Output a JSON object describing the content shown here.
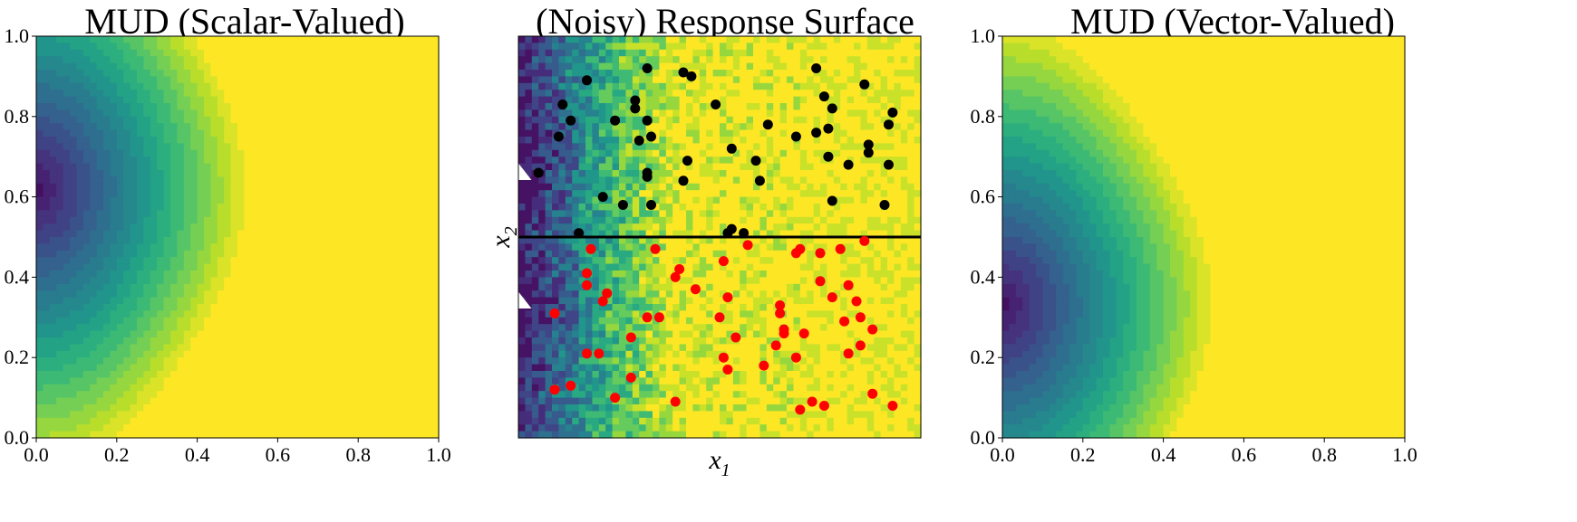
{
  "colors": {
    "viridis_stops": [
      "#440154",
      "#482878",
      "#3e4989",
      "#31688e",
      "#26828e",
      "#1f9e89",
      "#35b779",
      "#6ece58",
      "#b5de2b",
      "#fde725"
    ],
    "upper_points": "#000000",
    "lower_points": "#ff0000",
    "divider_line": "#000000",
    "marker": "#ffffff"
  },
  "chart_data": [
    {
      "type": "heatmap",
      "title": "MUD (Scalar-Valued)",
      "xlim": [
        0.0,
        1.0
      ],
      "ylim": [
        0.0,
        1.0
      ],
      "xticks": [
        "0.0",
        "0.2",
        "0.4",
        "0.6",
        "0.8",
        "1.0"
      ],
      "yticks": [
        "0.0",
        "0.2",
        "0.4",
        "0.6",
        "0.8",
        "1.0"
      ],
      "xlabel": "",
      "ylabel": "",
      "density_peak": {
        "x": 0.0,
        "y": 0.62
      },
      "colormap": "viridis",
      "filled_contours": true
    },
    {
      "type": "scatter",
      "title": "(Noisy) Response Surface",
      "xlabel": "x",
      "xlabel_sub": "1",
      "ylabel": "x",
      "ylabel_sub": "2",
      "xlim": [
        0.0,
        1.0
      ],
      "ylim": [
        0.0,
        1.0
      ],
      "xticks": [],
      "yticks": [],
      "background": "noisy filled contours (viridis), low values near x = 0",
      "divider_y": 0.5,
      "markers": [
        {
          "x": 0.01,
          "y": 0.66
        },
        {
          "x": 0.01,
          "y": 0.34
        }
      ],
      "series": [
        {
          "color": "upper_points",
          "points": [
            [
              0.17,
              0.89
            ],
            [
              0.32,
              0.92
            ],
            [
              0.41,
              0.91
            ],
            [
              0.43,
              0.9
            ],
            [
              0.74,
              0.92
            ],
            [
              0.86,
              0.88
            ],
            [
              0.11,
              0.83
            ],
            [
              0.29,
              0.84
            ],
            [
              0.29,
              0.82
            ],
            [
              0.49,
              0.83
            ],
            [
              0.76,
              0.85
            ],
            [
              0.78,
              0.82
            ],
            [
              0.93,
              0.81
            ],
            [
              0.13,
              0.79
            ],
            [
              0.24,
              0.79
            ],
            [
              0.32,
              0.79
            ],
            [
              0.62,
              0.78
            ],
            [
              0.92,
              0.78
            ],
            [
              0.77,
              0.77
            ],
            [
              0.1,
              0.75
            ],
            [
              0.3,
              0.74
            ],
            [
              0.33,
              0.75
            ],
            [
              0.69,
              0.75
            ],
            [
              0.74,
              0.76
            ],
            [
              0.87,
              0.73
            ],
            [
              0.53,
              0.72
            ],
            [
              0.87,
              0.71
            ],
            [
              0.77,
              0.7
            ],
            [
              0.42,
              0.69
            ],
            [
              0.59,
              0.69
            ],
            [
              0.82,
              0.68
            ],
            [
              0.92,
              0.68
            ],
            [
              0.05,
              0.66
            ],
            [
              0.32,
              0.66
            ],
            [
              0.32,
              0.65
            ],
            [
              0.41,
              0.64
            ],
            [
              0.6,
              0.64
            ],
            [
              0.21,
              0.6
            ],
            [
              0.78,
              0.59
            ],
            [
              0.26,
              0.58
            ],
            [
              0.33,
              0.58
            ],
            [
              0.91,
              0.58
            ],
            [
              0.15,
              0.51
            ],
            [
              0.53,
              0.52
            ],
            [
              0.52,
              0.51
            ],
            [
              0.56,
              0.51
            ]
          ]
        },
        {
          "color": "lower_points",
          "points": [
            [
              0.57,
              0.48
            ],
            [
              0.86,
              0.49
            ],
            [
              0.18,
              0.47
            ],
            [
              0.34,
              0.47
            ],
            [
              0.7,
              0.47
            ],
            [
              0.75,
              0.46
            ],
            [
              0.69,
              0.46
            ],
            [
              0.8,
              0.47
            ],
            [
              0.51,
              0.44
            ],
            [
              0.4,
              0.42
            ],
            [
              0.17,
              0.41
            ],
            [
              0.39,
              0.4
            ],
            [
              0.75,
              0.39
            ],
            [
              0.17,
              0.38
            ],
            [
              0.44,
              0.37
            ],
            [
              0.82,
              0.38
            ],
            [
              0.22,
              0.36
            ],
            [
              0.21,
              0.34
            ],
            [
              0.52,
              0.35
            ],
            [
              0.78,
              0.35
            ],
            [
              0.84,
              0.34
            ],
            [
              0.65,
              0.33
            ],
            [
              0.09,
              0.31
            ],
            [
              0.32,
              0.3
            ],
            [
              0.35,
              0.3
            ],
            [
              0.5,
              0.3
            ],
            [
              0.65,
              0.31
            ],
            [
              0.81,
              0.29
            ],
            [
              0.85,
              0.3
            ],
            [
              0.88,
              0.27
            ],
            [
              0.66,
              0.27
            ],
            [
              0.66,
              0.26
            ],
            [
              0.71,
              0.26
            ],
            [
              0.28,
              0.25
            ],
            [
              0.54,
              0.25
            ],
            [
              0.64,
              0.23
            ],
            [
              0.85,
              0.23
            ],
            [
              0.17,
              0.21
            ],
            [
              0.2,
              0.21
            ],
            [
              0.51,
              0.2
            ],
            [
              0.69,
              0.2
            ],
            [
              0.82,
              0.21
            ],
            [
              0.52,
              0.17
            ],
            [
              0.61,
              0.18
            ],
            [
              0.28,
              0.15
            ],
            [
              0.13,
              0.13
            ],
            [
              0.09,
              0.12
            ],
            [
              0.88,
              0.11
            ],
            [
              0.24,
              0.1
            ],
            [
              0.39,
              0.09
            ],
            [
              0.73,
              0.09
            ],
            [
              0.76,
              0.08
            ],
            [
              0.93,
              0.08
            ],
            [
              0.7,
              0.07
            ]
          ]
        }
      ]
    },
    {
      "type": "heatmap",
      "title": "MUD (Vector-Valued)",
      "xlim": [
        0.0,
        1.0
      ],
      "ylim": [
        0.0,
        1.0
      ],
      "xticks": [
        "0.0",
        "0.2",
        "0.4",
        "0.6",
        "0.8",
        "1.0"
      ],
      "yticks": [
        "0.0",
        "0.2",
        "0.4",
        "0.6",
        "0.8",
        "1.0"
      ],
      "xlabel": "",
      "ylabel": "",
      "density_peak": {
        "x": 0.0,
        "y": 0.33
      },
      "colormap": "viridis",
      "filled_contours": true
    }
  ]
}
